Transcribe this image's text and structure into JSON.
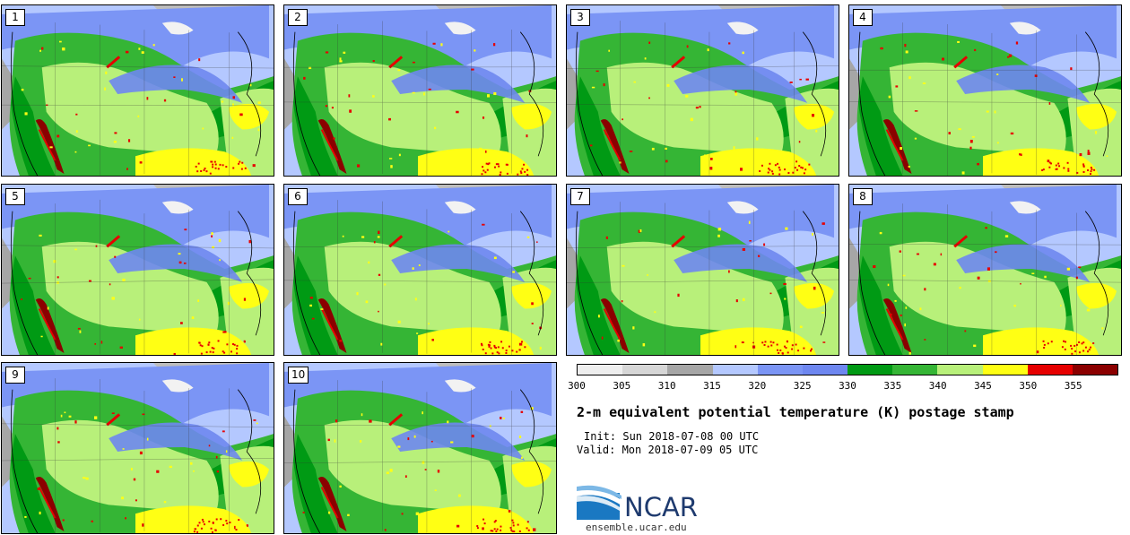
{
  "panels": [
    {
      "label": "1"
    },
    {
      "label": "2"
    },
    {
      "label": "3"
    },
    {
      "label": "4"
    },
    {
      "label": "5"
    },
    {
      "label": "6"
    },
    {
      "label": "7"
    },
    {
      "label": "8"
    },
    {
      "label": "9"
    },
    {
      "label": "10"
    }
  ],
  "colorbar": {
    "colors": [
      "#eeeeee",
      "#d6d6d6",
      "#a6a6a6",
      "#b4c8ff",
      "#7b95f5",
      "#6e87f0",
      "#009a14",
      "#35b535",
      "#b8f07a",
      "#ffff14",
      "#e60000",
      "#8b0000"
    ],
    "ticks": [
      "300",
      "305",
      "310",
      "315",
      "320",
      "325",
      "330",
      "335",
      "340",
      "345",
      "350",
      "355"
    ]
  },
  "title": "2-m equivalent potential temperature (K) postage stamp",
  "init": "Init: Sun 2018-07-08 00 UTC",
  "valid": "Valid: Mon 2018-07-09 05 UTC",
  "logo": {
    "text": "NCAR",
    "site": "ensemble.ucar.edu"
  }
}
